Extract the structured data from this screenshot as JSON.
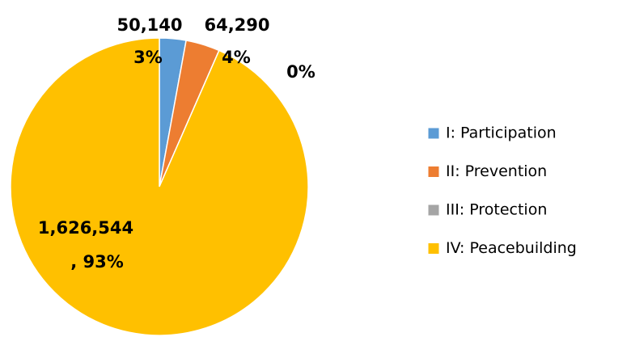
{
  "chart_data": {
    "type": "pie",
    "categories": [
      "I: Participation",
      "II: Prevention",
      "III: Protection",
      "IV: Peacebuilding"
    ],
    "values": [
      50140,
      64290,
      0,
      1626544
    ],
    "value_labels": [
      "50,140",
      "64,290",
      null,
      "1,626,544"
    ],
    "percent_labels": [
      "3%",
      "4%",
      "0%",
      ", 93%"
    ],
    "colors": [
      "#5b9bd5",
      "#ed7d31",
      "#a5a5a5",
      "#ffc000"
    ],
    "legend": "right"
  }
}
